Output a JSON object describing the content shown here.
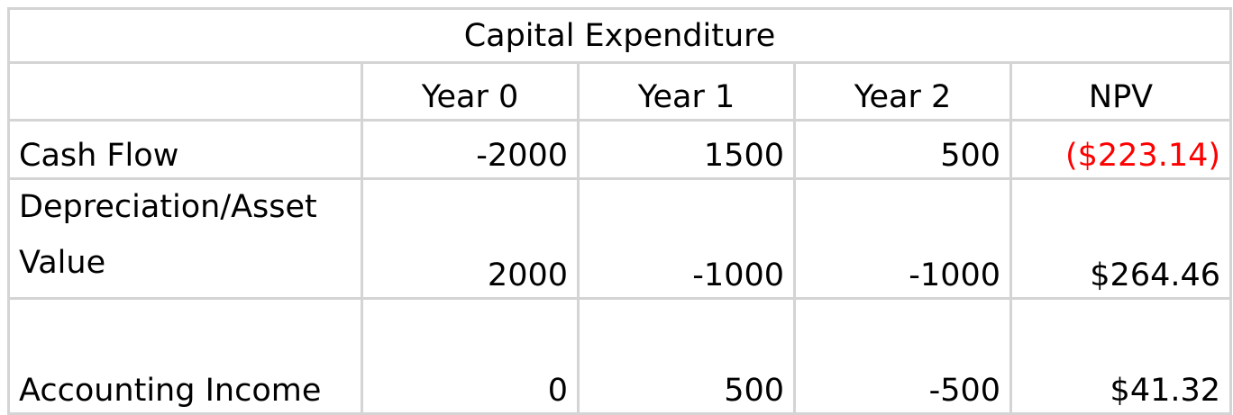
{
  "table": {
    "title": "Capital Expenditure",
    "headers": [
      "",
      "Year 0",
      "Year 1",
      "Year 2",
      "NPV"
    ],
    "rows": [
      {
        "label": "Cash Flow",
        "values": [
          "-2000",
          "1500",
          "500"
        ],
        "npv": "($223.14)"
      },
      {
        "label_line1": "Depreciation/Asset",
        "label_line2": "Value",
        "values": [
          "2000",
          "-1000",
          "-1000"
        ],
        "npv": "$264.46"
      },
      {
        "label": "Accounting Income",
        "values": [
          "0",
          "500",
          "-500"
        ],
        "npv": "$41.32"
      }
    ]
  },
  "colors": {
    "negative_currency": "#ff0000",
    "gridline": "#d4d4d4",
    "text": "#000000"
  }
}
